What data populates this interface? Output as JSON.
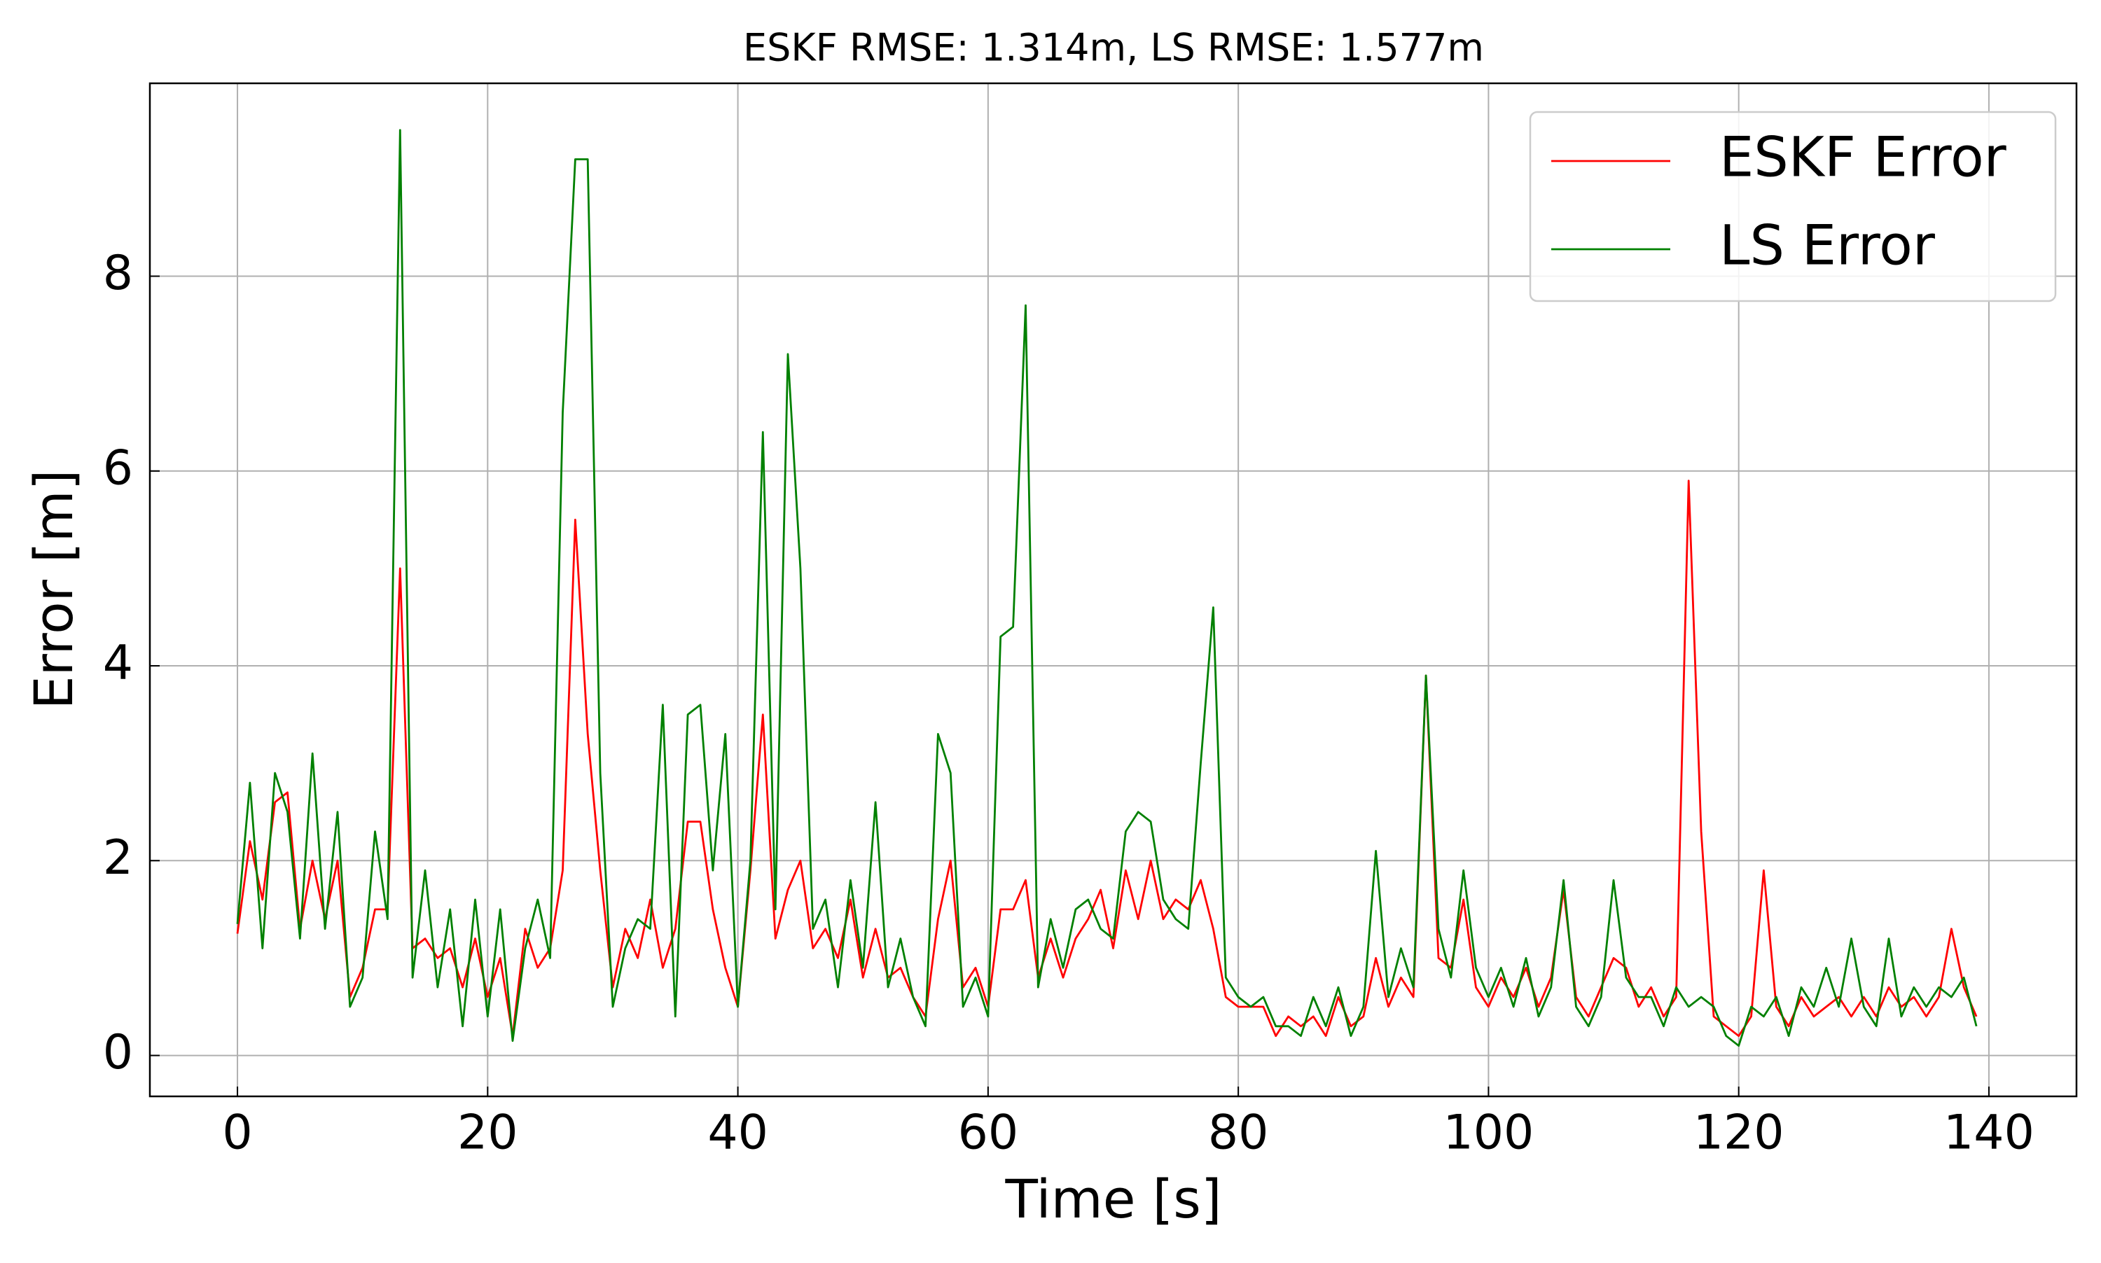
{
  "chart_data": {
    "type": "line",
    "title": "ESKF RMSE: 1.314m, LS RMSE: 1.577m",
    "xlabel": "Time [s]",
    "ylabel": "Error [m]",
    "x": [
      0,
      1,
      2,
      3,
      4,
      5,
      6,
      7,
      8,
      9,
      10,
      11,
      12,
      13,
      14,
      15,
      16,
      17,
      18,
      19,
      20,
      21,
      22,
      23,
      24,
      25,
      26,
      27,
      28,
      29,
      30,
      31,
      32,
      33,
      34,
      35,
      36,
      37,
      38,
      39,
      40,
      41,
      42,
      43,
      44,
      45,
      46,
      47,
      48,
      49,
      50,
      51,
      52,
      53,
      54,
      55,
      56,
      57,
      58,
      59,
      60,
      61,
      62,
      63,
      64,
      65,
      66,
      67,
      68,
      69,
      70,
      71,
      72,
      73,
      74,
      75,
      76,
      77,
      78,
      79,
      80,
      81,
      82,
      83,
      84,
      85,
      86,
      87,
      88,
      89,
      90,
      91,
      92,
      93,
      94,
      95,
      96,
      97,
      98,
      99,
      100,
      101,
      102,
      103,
      104,
      105,
      106,
      107,
      108,
      109,
      110,
      111,
      112,
      113,
      114,
      115,
      116,
      117,
      118,
      119,
      120,
      121,
      122,
      123,
      124,
      125,
      126,
      127,
      128,
      129,
      130,
      131,
      132,
      133,
      134,
      135,
      136,
      137,
      138,
      139
    ],
    "series": [
      {
        "name": "ESKF Error",
        "color": "#ff0000",
        "values": [
          1.25,
          2.2,
          1.6,
          2.6,
          2.7,
          1.3,
          2.0,
          1.4,
          2.0,
          0.6,
          0.9,
          1.5,
          1.5,
          5.0,
          1.1,
          1.2,
          1.0,
          1.1,
          0.7,
          1.2,
          0.6,
          1.0,
          0.2,
          1.3,
          0.9,
          1.1,
          1.9,
          5.5,
          3.3,
          1.9,
          0.7,
          1.3,
          1.0,
          1.6,
          0.9,
          1.3,
          2.4,
          2.4,
          1.5,
          0.9,
          0.5,
          1.9,
          3.5,
          1.2,
          1.7,
          2.0,
          1.1,
          1.3,
          1.0,
          1.6,
          0.8,
          1.3,
          0.8,
          0.9,
          0.6,
          0.4,
          1.4,
          2.0,
          0.7,
          0.9,
          0.5,
          1.5,
          1.5,
          1.8,
          0.8,
          1.2,
          0.8,
          1.2,
          1.4,
          1.7,
          1.1,
          1.9,
          1.4,
          2.0,
          1.4,
          1.6,
          1.5,
          1.8,
          1.3,
          0.6,
          0.5,
          0.5,
          0.5,
          0.2,
          0.4,
          0.3,
          0.4,
          0.2,
          0.6,
          0.3,
          0.4,
          1.0,
          0.5,
          0.8,
          0.6,
          3.9,
          1.0,
          0.9,
          1.6,
          0.7,
          0.5,
          0.8,
          0.6,
          0.9,
          0.5,
          0.8,
          1.7,
          0.6,
          0.4,
          0.7,
          1.0,
          0.9,
          0.5,
          0.7,
          0.4,
          0.6,
          5.9,
          2.3,
          0.4,
          0.3,
          0.2,
          0.4,
          1.9,
          0.5,
          0.3,
          0.6,
          0.4,
          0.5,
          0.6,
          0.4,
          0.6,
          0.4,
          0.7,
          0.5,
          0.6,
          0.4,
          0.6,
          1.3,
          0.7,
          0.4
        ]
      },
      {
        "name": "LS Error",
        "color": "#008000",
        "values": [
          1.35,
          2.8,
          1.1,
          2.9,
          2.5,
          1.2,
          3.1,
          1.3,
          2.5,
          0.5,
          0.8,
          2.3,
          1.4,
          9.5,
          0.8,
          1.9,
          0.7,
          1.5,
          0.3,
          1.6,
          0.4,
          1.5,
          0.15,
          1.1,
          1.6,
          1.0,
          6.6,
          9.2,
          9.2,
          2.9,
          0.5,
          1.1,
          1.4,
          1.3,
          3.6,
          0.4,
          3.5,
          3.6,
          1.9,
          3.3,
          0.5,
          2.0,
          6.4,
          1.5,
          7.2,
          5.0,
          1.3,
          1.6,
          0.7,
          1.8,
          0.9,
          2.6,
          0.7,
          1.2,
          0.6,
          0.3,
          3.3,
          2.9,
          0.5,
          0.8,
          0.4,
          4.3,
          4.4,
          7.7,
          0.7,
          1.4,
          0.9,
          1.5,
          1.6,
          1.3,
          1.2,
          2.3,
          2.5,
          2.4,
          1.6,
          1.4,
          1.3,
          3.0,
          4.6,
          0.8,
          0.6,
          0.5,
          0.6,
          0.3,
          0.3,
          0.2,
          0.6,
          0.3,
          0.7,
          0.2,
          0.5,
          2.1,
          0.6,
          1.1,
          0.7,
          3.9,
          1.3,
          0.8,
          1.9,
          0.9,
          0.6,
          0.9,
          0.5,
          1.0,
          0.4,
          0.7,
          1.8,
          0.5,
          0.3,
          0.6,
          1.8,
          0.8,
          0.6,
          0.6,
          0.3,
          0.7,
          0.5,
          0.6,
          0.5,
          0.2,
          0.1,
          0.5,
          0.4,
          0.6,
          0.2,
          0.7,
          0.5,
          0.9,
          0.5,
          1.2,
          0.5,
          0.3,
          1.2,
          0.4,
          0.7,
          0.5,
          0.7,
          0.6,
          0.8,
          0.3
        ]
      }
    ],
    "xlim": [
      -7,
      147
    ],
    "ylim": [
      -0.42,
      9.98
    ],
    "xticks": [
      0,
      20,
      40,
      60,
      80,
      100,
      120,
      140
    ],
    "yticks": [
      0,
      2,
      4,
      6,
      8
    ],
    "grid": true,
    "legend": "upper right"
  }
}
